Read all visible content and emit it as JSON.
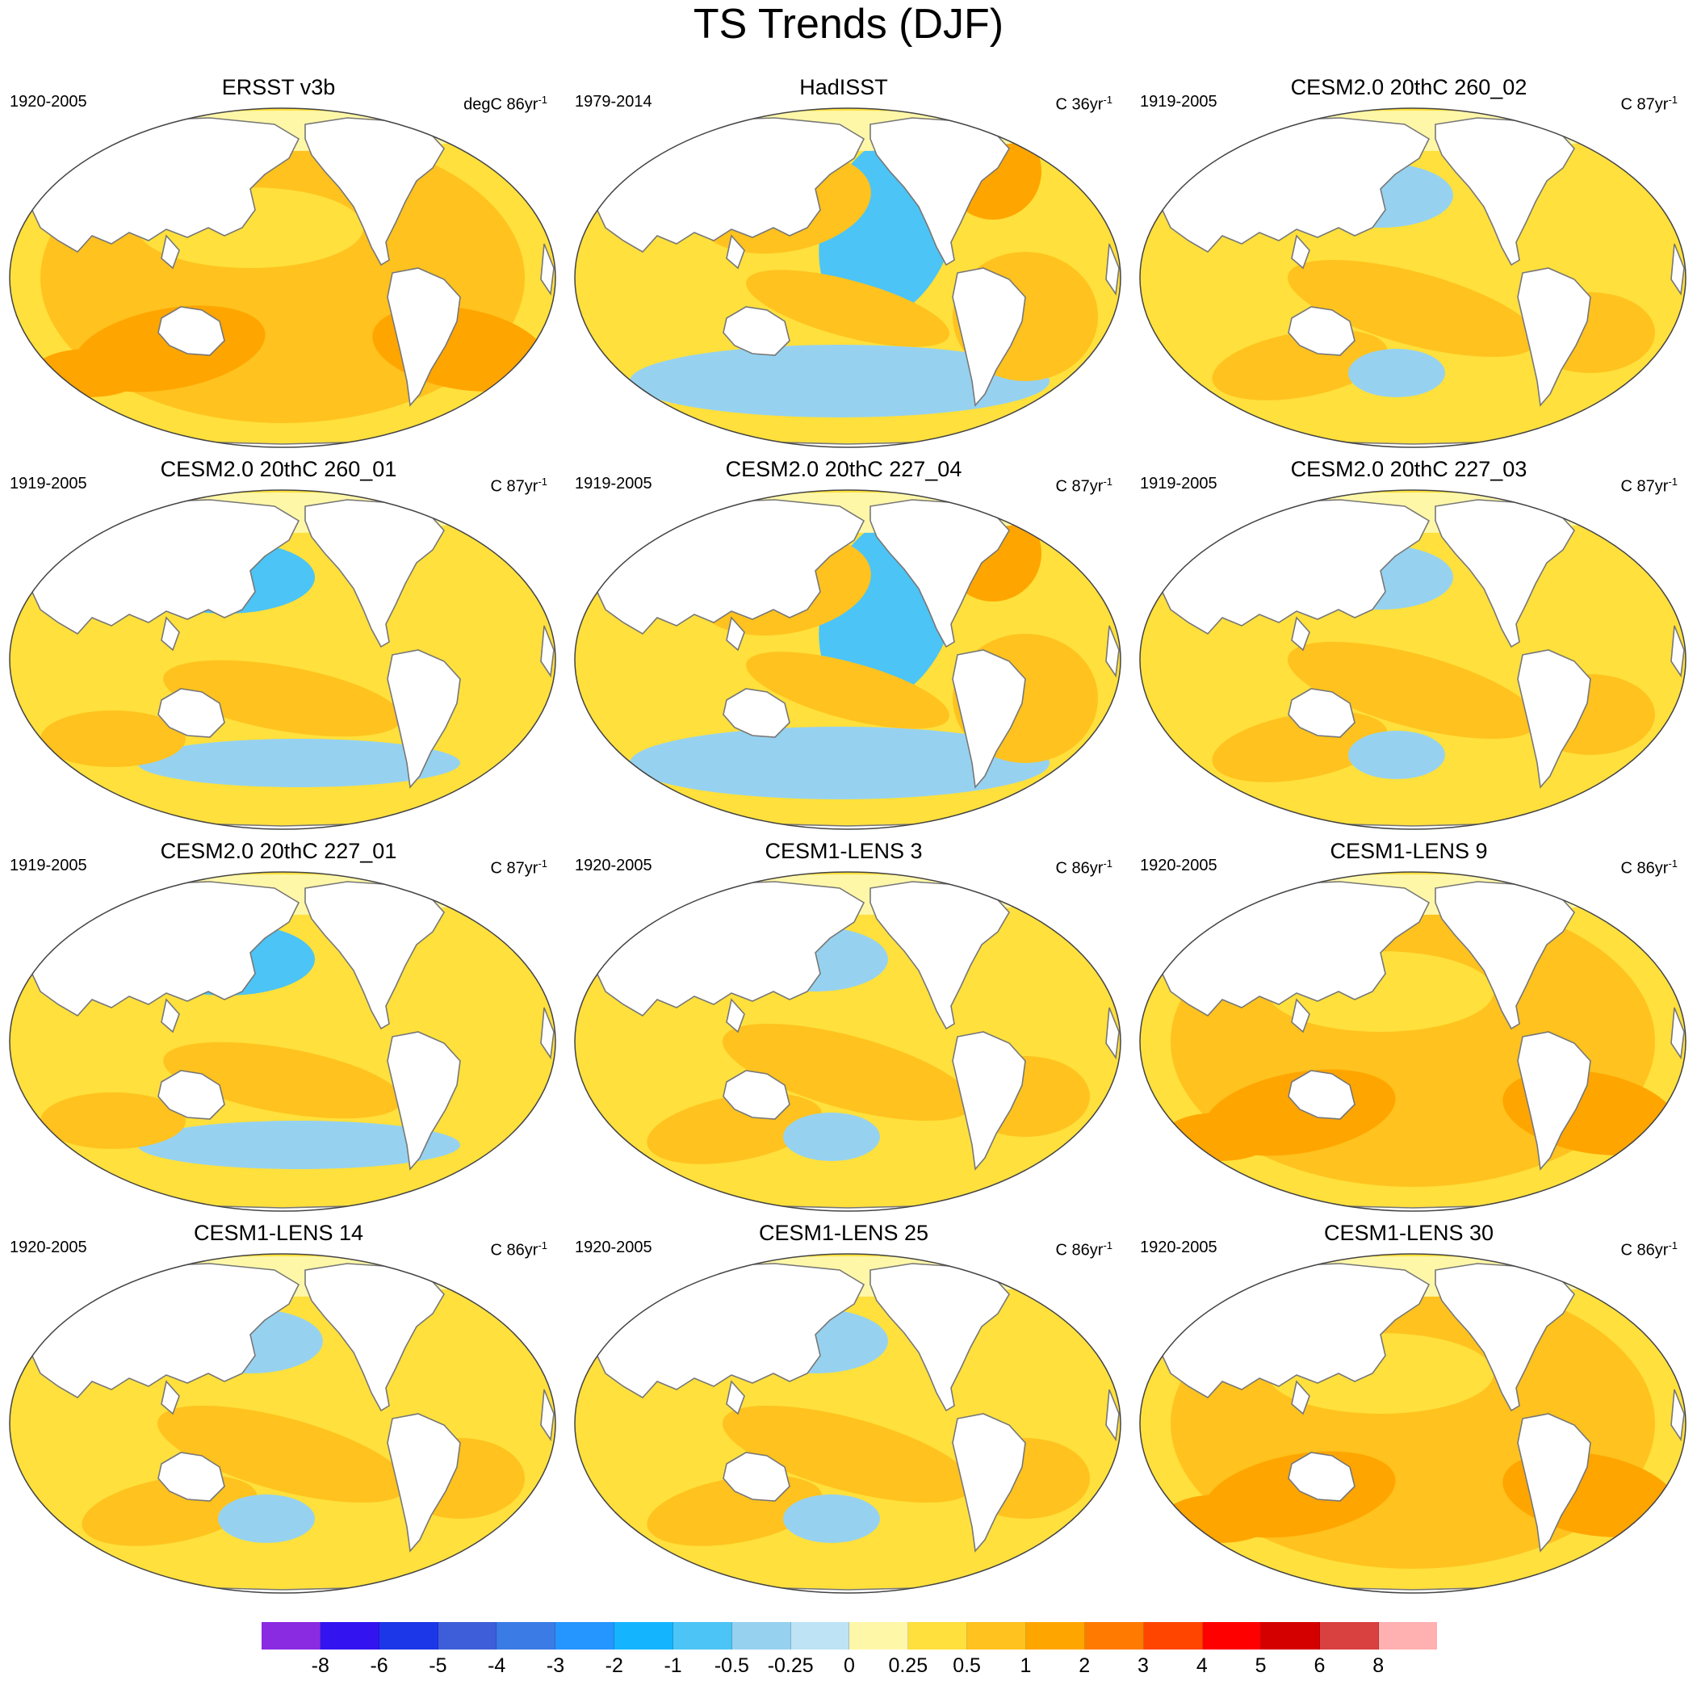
{
  "title": "TS Trends (DJF)",
  "panels": [
    {
      "title": "ERSST v3b",
      "period": "1920-2005",
      "units_base": "degC 86yr",
      "units_exp": "-1",
      "pattern": "warm"
    },
    {
      "title": "HadISST",
      "period": "1979-2014",
      "units_base": "C 36yr",
      "units_exp": "-1",
      "pattern": "lanina"
    },
    {
      "title": "CESM2.0 20thC 260_02",
      "period": "1919-2005",
      "units_base": "C 87yr",
      "units_exp": "-1",
      "pattern": "mixed"
    },
    {
      "title": "CESM2.0 20thC 260_01",
      "period": "1919-2005",
      "units_base": "C 87yr",
      "units_exp": "-1",
      "pattern": "npcool"
    },
    {
      "title": "CESM2.0 20thC 227_04",
      "period": "1919-2005",
      "units_base": "C 87yr",
      "units_exp": "-1",
      "pattern": "lanina"
    },
    {
      "title": "CESM2.0 20thC 227_03",
      "period": "1919-2005",
      "units_base": "C 87yr",
      "units_exp": "-1",
      "pattern": "mixed"
    },
    {
      "title": "CESM2.0 20thC 227_01",
      "period": "1919-2005",
      "units_base": "C 87yr",
      "units_exp": "-1",
      "pattern": "npcool"
    },
    {
      "title": "CESM1-LENS 3",
      "period": "1920-2005",
      "units_base": "C 86yr",
      "units_exp": "-1",
      "pattern": "mixed"
    },
    {
      "title": "CESM1-LENS 9",
      "period": "1920-2005",
      "units_base": "C 86yr",
      "units_exp": "-1",
      "pattern": "warm"
    },
    {
      "title": "CESM1-LENS 14",
      "period": "1920-2005",
      "units_base": "C 86yr",
      "units_exp": "-1",
      "pattern": "mixed"
    },
    {
      "title": "CESM1-LENS 25",
      "period": "1920-2005",
      "units_base": "C 86yr",
      "units_exp": "-1",
      "pattern": "mixed"
    },
    {
      "title": "CESM1-LENS 30",
      "period": "1920-2005",
      "units_base": "C 86yr",
      "units_exp": "-1",
      "pattern": "warm"
    }
  ],
  "colorbar": {
    "labels": [
      "-8",
      "-6",
      "-5",
      "-4",
      "-3",
      "-2",
      "-1",
      "-0.5",
      "-0.25",
      "0",
      "0.25",
      "0.5",
      "1",
      "2",
      "3",
      "4",
      "5",
      "6",
      "8"
    ],
    "colors": [
      "#8a2be2",
      "#3314f0",
      "#1c37e8",
      "#3d5ed8",
      "#3a7be6",
      "#2596ff",
      "#14b4ff",
      "#4cc4f5",
      "#96d2f0",
      "#bde3f5",
      "#fff7a8",
      "#ffe03c",
      "#ffc21e",
      "#ffa500",
      "#ff7a00",
      "#ff4500",
      "#ff0000",
      "#d40000",
      "#d94040",
      "#ffb0b0"
    ]
  }
}
